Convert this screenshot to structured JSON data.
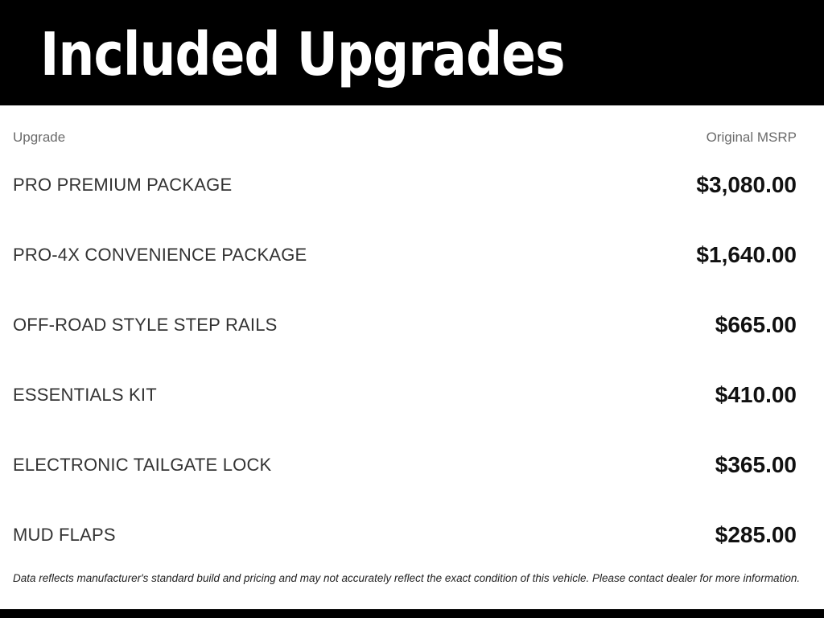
{
  "header": {
    "title": "Included Upgrades"
  },
  "table": {
    "columns": {
      "upgrade": "Upgrade",
      "msrp": "Original MSRP"
    },
    "rows": [
      {
        "name": "PRO PREMIUM PACKAGE",
        "price": "$3,080.00"
      },
      {
        "name": "PRO-4X CONVENIENCE PACKAGE",
        "price": "$1,640.00"
      },
      {
        "name": "OFF-ROAD STYLE STEP RAILS",
        "price": "$665.00"
      },
      {
        "name": "ESSENTIALS KIT",
        "price": "$410.00"
      },
      {
        "name": "ELECTRONIC TAILGATE LOCK",
        "price": "$365.00"
      },
      {
        "name": "MUD FLAPS",
        "price": "$285.00"
      }
    ]
  },
  "footer": {
    "disclaimer": "Data reflects manufacturer's standard build and pricing and may not accurately reflect the exact condition of this vehicle. Please contact dealer for more information."
  },
  "colors": {
    "banner_bg": "#000000",
    "banner_text": "#ffffff",
    "column_label": "#6b6b6b",
    "row_text": "#333333",
    "price_text": "#111111"
  }
}
